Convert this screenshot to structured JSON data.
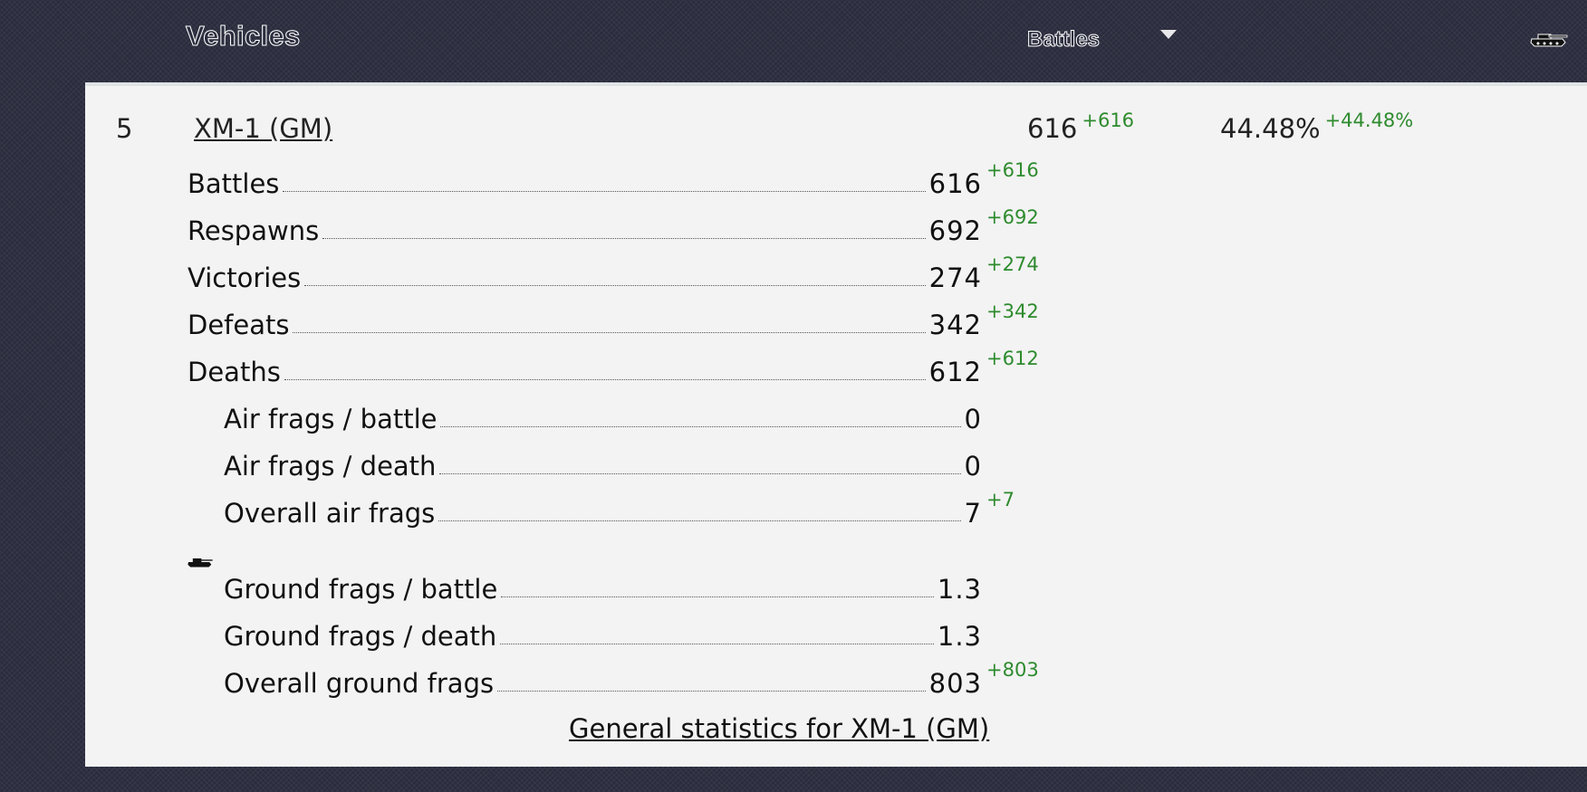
{
  "header": {
    "title": "Vehicles",
    "sort_label": "Battles",
    "sort_arrow_icon": "triangle-down-icon",
    "tank_icon": "tank-icon"
  },
  "vehicle": {
    "rank": "5",
    "name": "XM-1 (GM)",
    "battles": "616",
    "battles_delta": "+616",
    "winrate": "44.48%",
    "winrate_delta": "+44.48%"
  },
  "stats": [
    {
      "label": "Battles",
      "value": "616",
      "delta": "+616"
    },
    {
      "label": "Respawns",
      "value": "692",
      "delta": "+692"
    },
    {
      "label": "Victories",
      "value": "274",
      "delta": "+274"
    },
    {
      "label": "Defeats",
      "value": "342",
      "delta": "+342"
    },
    {
      "label": "Deaths",
      "value": "612",
      "delta": "+612"
    },
    {
      "label": "Air frags / battle",
      "value": "0",
      "delta": ""
    },
    {
      "label": "Air frags / death",
      "value": "0",
      "delta": ""
    },
    {
      "label": "Overall air frags",
      "value": "7",
      "delta": "+7"
    },
    {
      "label": "Ground frags / battle",
      "value": "1.3",
      "delta": ""
    },
    {
      "label": "Ground frags / death",
      "value": "1.3",
      "delta": ""
    },
    {
      "label": "Overall ground frags",
      "value": "803",
      "delta": "+803"
    }
  ],
  "ground_section_icon": "tank-icon",
  "footer_link": "General statistics for XM-1 (GM)",
  "colors": {
    "background": "#2b2d3e",
    "panel": "#f3f3f3",
    "delta_green": "#2e8b2e"
  }
}
